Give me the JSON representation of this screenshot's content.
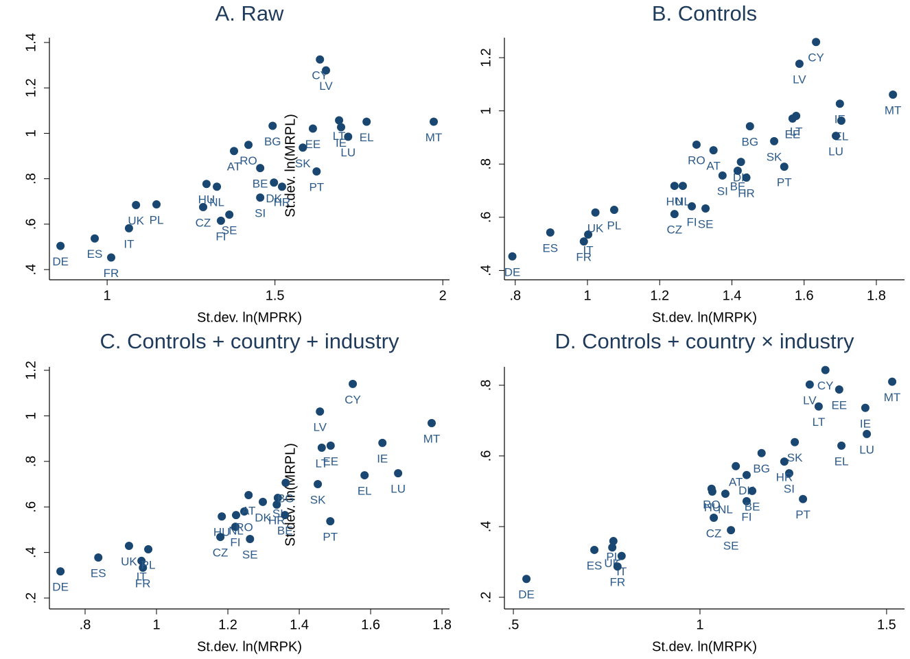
{
  "chart_data": [
    {
      "type": "scatter",
      "title": "A. Raw",
      "x_label": "St.dev. ln(MPRK)",
      "y_label": "St.dev. ln(MRPL)",
      "color": "#1a4771",
      "labels": [
        "DE",
        "ES",
        "FR",
        "IT",
        "UK",
        "PL",
        "CZ",
        "HU",
        "NL",
        "FI",
        "SE",
        "AT",
        "RO",
        "BE",
        "SI",
        "BG",
        "DK",
        "HR",
        "EE",
        "SK",
        "PT",
        "CY",
        "LV",
        "LT",
        "IE",
        "LU",
        "EL",
        "MT"
      ],
      "x": [
        0.861,
        0.963,
        1.012,
        1.065,
        1.086,
        1.147,
        1.286,
        1.296,
        1.327,
        1.339,
        1.364,
        1.378,
        1.421,
        1.456,
        1.456,
        1.493,
        1.497,
        1.521,
        1.613,
        1.583,
        1.624,
        1.634,
        1.652,
        1.691,
        1.697,
        1.718,
        1.773,
        1.973
      ],
      "y": [
        0.504,
        0.537,
        0.453,
        0.582,
        0.684,
        0.687,
        0.675,
        0.777,
        0.765,
        0.615,
        0.642,
        0.922,
        0.949,
        0.847,
        0.717,
        1.033,
        0.783,
        0.765,
        1.021,
        0.937,
        0.832,
        1.325,
        1.277,
        1.057,
        1.027,
        0.985,
        1.051,
        1.051
      ],
      "xlim": [
        0.828,
        2.02
      ],
      "ylim": [
        0.355,
        1.421
      ],
      "xticks": [
        1,
        1.5,
        2
      ],
      "yticks": [
        {
          "value": 0.4,
          "label": ".4"
        },
        {
          "value": 0.6,
          "label": ".6"
        },
        {
          "value": 0.8,
          "label": ".8"
        },
        1,
        1.2,
        1.4
      ]
    },
    {
      "type": "scatter",
      "title": "B. Controls",
      "x_label": "St.dev. ln(MRPK)",
      "color": "#1a4771",
      "labels": [
        "DE",
        "ES",
        "FR",
        "IT",
        "UK",
        "PL",
        "CZ",
        "HU",
        "NL",
        "FI",
        "SE",
        "RO",
        "AT",
        "DK",
        "BE",
        "SI",
        "HR",
        "BG",
        "SK",
        "PT",
        "EE",
        "LT",
        "LV",
        "CY",
        "IE",
        "EL",
        "LU",
        "MT"
      ],
      "x": [
        0.792,
        0.897,
        0.99,
        1.002,
        1.022,
        1.074,
        1.241,
        1.241,
        1.264,
        1.289,
        1.327,
        1.302,
        1.349,
        1.425,
        1.416,
        1.374,
        1.44,
        1.45,
        1.517,
        1.545,
        1.568,
        1.578,
        1.587,
        1.633,
        1.699,
        1.703,
        1.688,
        1.846
      ],
      "y": [
        0.453,
        0.543,
        0.509,
        0.535,
        0.618,
        0.628,
        0.612,
        0.718,
        0.718,
        0.641,
        0.633,
        0.873,
        0.852,
        0.808,
        0.775,
        0.757,
        0.749,
        0.942,
        0.886,
        0.79,
        0.971,
        0.981,
        1.177,
        1.259,
        1.027,
        0.963,
        0.906,
        1.061
      ],
      "xlim": [
        0.77,
        1.878
      ],
      "ylim": [
        0.365,
        1.275
      ],
      "xticks": [
        {
          "value": 0.8,
          "label": ".8"
        },
        1,
        1.2,
        1.4,
        1.6,
        1.8
      ],
      "yticks": [
        {
          "value": 0.4,
          "label": ".4"
        },
        {
          "value": 0.6,
          "label": ".6"
        },
        {
          "value": 0.8,
          "label": ".8"
        },
        1,
        1.2
      ]
    },
    {
      "type": "scatter",
      "title": "C. Controls + country + industry",
      "x_label": "St.dev. ln(MRPK)",
      "y_label": "St.dev. ln(MRPL)",
      "color": "#1a4771",
      "labels": [
        "DE",
        "ES",
        "UK",
        "FR",
        "IT",
        "PL",
        "HU",
        "CZ",
        "NL",
        "FI",
        "RO",
        "SE",
        "AT",
        "SI",
        "DK",
        "HR",
        "BG",
        "BE",
        "SK",
        "LV",
        "LT",
        "EE",
        "PT",
        "IE",
        "EL",
        "LU",
        "CY",
        "MT"
      ],
      "x": [
        0.731,
        0.837,
        0.923,
        0.962,
        0.958,
        0.977,
        1.183,
        1.179,
        1.223,
        1.221,
        1.246,
        1.262,
        1.258,
        1.34,
        1.298,
        1.337,
        1.362,
        1.36,
        1.452,
        1.458,
        1.463,
        1.488,
        1.487,
        1.633,
        1.583,
        1.677,
        1.55,
        1.771
      ],
      "y": [
        0.317,
        0.378,
        0.429,
        0.333,
        0.363,
        0.414,
        0.558,
        0.468,
        0.564,
        0.513,
        0.58,
        0.459,
        0.652,
        0.64,
        0.622,
        0.61,
        0.706,
        0.564,
        0.7,
        1.019,
        0.86,
        0.869,
        0.537,
        0.881,
        0.739,
        0.748,
        1.14,
        0.968
      ],
      "xlim": [
        0.7,
        1.821
      ],
      "ylim": [
        0.152,
        1.215
      ],
      "xticks": [
        {
          "value": 0.8,
          "label": ".8"
        },
        1,
        1.2,
        1.4,
        1.6,
        1.8
      ],
      "yticks": [
        {
          "value": 0.2,
          "label": ".2"
        },
        {
          "value": 0.4,
          "label": ".4"
        },
        {
          "value": 0.6,
          "label": ".6"
        },
        {
          "value": 0.8,
          "label": ".8"
        },
        1,
        1.2
      ]
    },
    {
      "type": "scatter",
      "title": "D. Controls + country × industry",
      "x_label": "St.dev. ln(MRPK)",
      "color": "#1a4771",
      "labels": [
        "DE",
        "ES",
        "PL",
        "UK",
        "IT",
        "FR",
        "CZ",
        "SE",
        "RO",
        "HU",
        "NL",
        "AT",
        "DK",
        "BG",
        "FI",
        "BE",
        "SI",
        "HR",
        "SK",
        "PT",
        "LV",
        "CY",
        "LT",
        "EE",
        "EL",
        "IE",
        "LU",
        "MT"
      ],
      "x": [
        0.535,
        0.717,
        0.768,
        0.765,
        0.79,
        0.779,
        1.037,
        1.083,
        1.031,
        1.033,
        1.068,
        1.096,
        1.125,
        1.165,
        1.125,
        1.14,
        1.239,
        1.226,
        1.254,
        1.276,
        1.294,
        1.336,
        1.318,
        1.373,
        1.379,
        1.443,
        1.447,
        1.515
      ],
      "y": [
        0.252,
        0.334,
        0.359,
        0.341,
        0.317,
        0.287,
        0.425,
        0.39,
        0.507,
        0.499,
        0.493,
        0.571,
        0.546,
        0.608,
        0.472,
        0.501,
        0.551,
        0.584,
        0.639,
        0.478,
        0.802,
        0.843,
        0.74,
        0.788,
        0.629,
        0.736,
        0.662,
        0.81
      ],
      "xlim": [
        0.476,
        1.548
      ],
      "ylim": [
        0.167,
        0.852
      ],
      "xticks": [
        {
          "value": 0.5,
          "label": ".5"
        },
        1,
        1.5
      ],
      "yticks": [
        {
          "value": 0.2,
          "label": ".2"
        },
        {
          "value": 0.4,
          "label": ".4"
        },
        {
          "value": 0.6,
          "label": ".6"
        },
        {
          "value": 0.8,
          "label": ".8"
        }
      ]
    }
  ]
}
